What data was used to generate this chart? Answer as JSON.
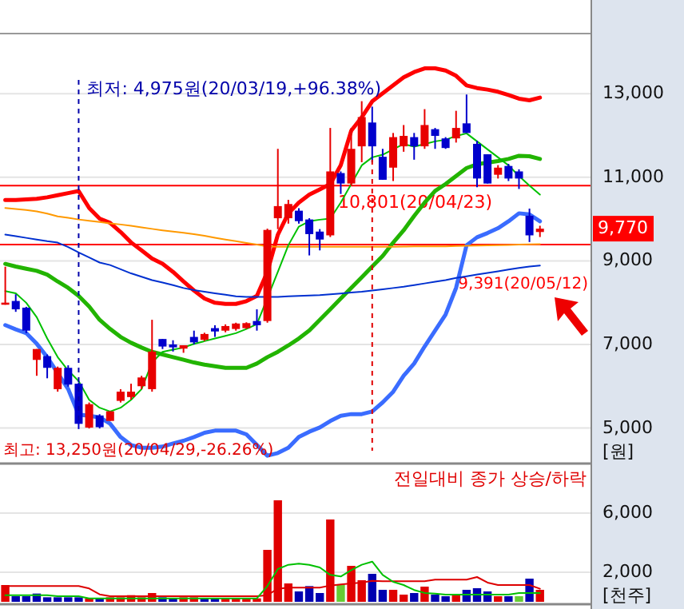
{
  "chart_data": [
    {
      "type": "candlestick",
      "categories": [
        null,
        null,
        null,
        null,
        null,
        null,
        null,
        null,
        null,
        null,
        null,
        null,
        null,
        null,
        null,
        null,
        null,
        null,
        null,
        null,
        null,
        null,
        null,
        null,
        null,
        null,
        null,
        null,
        null,
        null,
        null,
        null,
        null,
        null,
        null,
        null,
        null,
        null,
        null,
        null,
        null,
        null,
        null,
        null,
        null,
        null,
        null,
        null,
        null,
        null,
        null,
        null
      ],
      "ohlc": [
        [
          7950,
          8860,
          7950,
          8000
        ],
        [
          8040,
          8200,
          7780,
          7840
        ],
        [
          7880,
          7900,
          7270,
          7330
        ],
        [
          6630,
          6890,
          6250,
          6890
        ],
        [
          6720,
          6760,
          6190,
          6440
        ],
        [
          5930,
          6470,
          5870,
          6440
        ],
        [
          6440,
          6500,
          5990,
          6040
        ],
        [
          6060,
          6090,
          4975,
          5100
        ],
        [
          5010,
          5610,
          4990,
          5570
        ],
        [
          5300,
          5330,
          4990,
          5020
        ],
        [
          5170,
          5400,
          5170,
          5400
        ],
        [
          5650,
          5930,
          5610,
          5870
        ],
        [
          5740,
          6060,
          5680,
          5870
        ],
        [
          6000,
          6250,
          5930,
          6210
        ],
        [
          5930,
          7590,
          5870,
          6830
        ],
        [
          7130,
          7130,
          6890,
          6950
        ],
        [
          7000,
          7100,
          6830,
          6930
        ],
        [
          6900,
          6980,
          6800,
          6980
        ],
        [
          7180,
          7330,
          7000,
          7050
        ],
        [
          7110,
          7280,
          7080,
          7250
        ],
        [
          7390,
          7460,
          7180,
          7310
        ],
        [
          7330,
          7480,
          7290,
          7440
        ],
        [
          7370,
          7520,
          7330,
          7500
        ],
        [
          7390,
          7530,
          7370,
          7510
        ],
        [
          7560,
          7840,
          7330,
          7460
        ],
        [
          7560,
          9770,
          7520,
          9740
        ],
        [
          10020,
          11680,
          9760,
          10310
        ],
        [
          10020,
          10460,
          9890,
          10360
        ],
        [
          10200,
          10260,
          9890,
          9950
        ],
        [
          9990,
          10020,
          9130,
          9640
        ],
        [
          9700,
          9760,
          9250,
          9510
        ],
        [
          9610,
          12180,
          9570,
          11140
        ],
        [
          11100,
          11140,
          10600,
          10850
        ],
        [
          10850,
          12180,
          10800,
          11680
        ],
        [
          11740,
          12820,
          11360,
          12440
        ],
        [
          12310,
          12690,
          11360,
          11740
        ],
        [
          11490,
          11680,
          10940,
          10940
        ],
        [
          11230,
          12060,
          10910,
          11960
        ],
        [
          11740,
          12250,
          11610,
          11990
        ],
        [
          11960,
          12060,
          11420,
          11740
        ],
        [
          11740,
          12630,
          11680,
          12250
        ],
        [
          12150,
          12180,
          11680,
          11990
        ],
        [
          11930,
          11960,
          11680,
          11700
        ],
        [
          11930,
          12590,
          11830,
          12180
        ],
        [
          12290,
          12980,
          12060,
          12060
        ],
        [
          11800,
          11870,
          10760,
          10970
        ],
        [
          11550,
          11550,
          10850,
          10850
        ],
        [
          11060,
          11290,
          10970,
          11230
        ],
        [
          11270,
          11320,
          10910,
          10970
        ],
        [
          11140,
          11190,
          10720,
          10970
        ],
        [
          10080,
          10250,
          9450,
          9610
        ],
        [
          9690,
          9840,
          9570,
          9770
        ]
      ],
      "colors": [
        "#e80000",
        "#0000cc",
        "#0000cc",
        "#e80000",
        "#0000cc",
        "#e80000",
        "#0000cc",
        "#0000cc",
        "#e80000",
        "#0000cc",
        "#e80000",
        "#e80000",
        "#e80000",
        "#e80000",
        "#e80000",
        "#0000cc",
        "#0000cc",
        "#e80000",
        "#0000cc",
        "#e80000",
        "#0000cc",
        "#e80000",
        "#e80000",
        "#e80000",
        "#0000cc",
        "#e80000",
        "#e80000",
        "#e80000",
        "#0000cc",
        "#0000cc",
        "#0000cc",
        "#e80000",
        "#0000cc",
        "#e80000",
        "#e80000",
        "#0000cc",
        "#0000cc",
        "#e80000",
        "#e80000",
        "#0000cc",
        "#e80000",
        "#0000cc",
        "#0000cc",
        "#e80000",
        "#0000cc",
        "#0000cc",
        "#0000cc",
        "#e80000",
        "#0000cc",
        "#0000cc",
        "#0000cc",
        "#e80000"
      ],
      "series": [
        {
          "type": "line",
          "color": "#ff0000",
          "values": [
            10457,
            10457,
            10470,
            10483,
            10520,
            10570,
            10620,
            10670,
            10266,
            10010,
            9910,
            9690,
            9440,
            9250,
            9055,
            8930,
            8736,
            8508,
            8290,
            8100,
            7997,
            7970,
            7970,
            8035,
            8162,
            8736,
            9628,
            10138,
            10393,
            10584,
            10711,
            10840,
            11287,
            12115,
            12434,
            12816,
            13007,
            13198,
            13390,
            13517,
            13606,
            13606,
            13555,
            13428,
            13198,
            13135,
            13097,
            13046,
            12969,
            12880,
            12842,
            12906
          ]
        },
        {
          "type": "line",
          "color": "#22b400",
          "values": [
            8927,
            8863,
            8812,
            8761,
            8672,
            8506,
            8353,
            8162,
            7907,
            7588,
            7371,
            7180,
            7040,
            6925,
            6823,
            6760,
            6696,
            6632,
            6568,
            6517,
            6479,
            6441,
            6441,
            6441,
            6543,
            6696,
            6823,
            6976,
            7142,
            7333,
            7588,
            7843,
            8098,
            8353,
            8608,
            8863,
            9118,
            9437,
            9730,
            10074,
            10393,
            10673,
            10839,
            11030,
            11221,
            11310,
            11349,
            11387,
            11438,
            11514,
            11502,
            11438
          ]
        },
        {
          "type": "line",
          "color": "#3a6cff",
          "values": [
            7463,
            7361,
            7271,
            7016,
            6696,
            6314,
            5932,
            5320,
            5294,
            5256,
            5103,
            4784,
            4593,
            4529,
            4529,
            4555,
            4631,
            4695,
            4784,
            4886,
            4937,
            4937,
            4937,
            4848,
            4593,
            4338,
            4402,
            4529,
            4784,
            4912,
            5014,
            5167,
            5294,
            5333,
            5333,
            5397,
            5613,
            5868,
            6250,
            6543,
            6951,
            7333,
            7716,
            8353,
            9373,
            9564,
            9666,
            9781,
            9946,
            10138,
            10112,
            9946
          ]
        },
        {
          "type": "line",
          "color": "#ff9900",
          "values": [
            10266,
            10240,
            10215,
            10185,
            10130,
            10063,
            10030,
            9990,
            9960,
            9930,
            9897,
            9870,
            9840,
            9800,
            9765,
            9731,
            9700,
            9670,
            9640,
            9600,
            9553,
            9510,
            9470,
            9430,
            9390,
            9349,
            9336,
            9336,
            9336,
            9336,
            9336,
            9336,
            9336,
            9336,
            9336,
            9336,
            9336,
            9336,
            9340,
            9345,
            9349,
            9349,
            9349,
            9355,
            9360,
            9365,
            9370,
            9375,
            9380,
            9390,
            9395,
            9400
          ]
        },
        {
          "type": "line",
          "color": "#0030d0",
          "values": [
            9627,
            9590,
            9550,
            9510,
            9470,
            9436,
            9330,
            9200,
            9080,
            8960,
            8900,
            8800,
            8700,
            8620,
            8540,
            8480,
            8420,
            8350,
            8300,
            8260,
            8225,
            8190,
            8150,
            8136,
            8136,
            8136,
            8136,
            8150,
            8160,
            8170,
            8180,
            8200,
            8220,
            8240,
            8260,
            8289,
            8320,
            8350,
            8380,
            8420,
            8460,
            8500,
            8540,
            8590,
            8630,
            8671,
            8710,
            8750,
            8790,
            8830,
            8863,
            8888
          ]
        },
        {
          "type": "line",
          "color": "#00c000",
          "values": [
            8276,
            8225,
            7996,
            7652,
            7142,
            6696,
            6377,
            6122,
            5676,
            5485,
            5396,
            5485,
            5676,
            5931,
            6568,
            6823,
            6874,
            6925,
            7014,
            7078,
            7142,
            7205,
            7269,
            7371,
            7486,
            null,
            8736,
            9373,
            9819,
            9947,
            9985,
            10010,
            10393,
            10839,
            11285,
            11476,
            11540,
            11668,
            11795,
            11731,
            11795,
            11859,
            11897,
            11987,
            12050,
            11859,
            11668,
            11476,
            11285,
            11030,
            10801,
            10584
          ]
        }
      ],
      "ylim": [
        4150,
        14400
      ],
      "yticks": [
        {
          "value": 5000,
          "label": "5,000"
        },
        {
          "value": 7000,
          "label": "7,000"
        },
        {
          "value": 9000,
          "label": "9,000"
        },
        {
          "value": 11000,
          "label": "11,000"
        },
        {
          "value": 13000,
          "label": "13,000"
        }
      ],
      "ylabel": "[원]",
      "grid": "y",
      "ref_lines": [
        {
          "axis": "y",
          "value": 10801,
          "label": "10,801(20/04/23)",
          "color": "#ff0000"
        },
        {
          "axis": "y",
          "value": 9391,
          "label": "9,391(20/05/12)",
          "color": "#ff0000"
        }
      ],
      "annotations": [
        "9,770",
        "최저: 4,975원(20/03/19,+96.38%)",
        "최고: 13,250원(20/04/29,-26.26%)"
      ]
    },
    {
      "type": "bar",
      "categories": [
        null,
        null,
        null,
        null,
        null,
        null,
        null,
        null,
        null,
        null,
        null,
        null,
        null,
        null,
        null,
        null,
        null,
        null,
        null,
        null,
        null,
        null,
        null,
        null,
        null,
        null,
        null,
        null,
        null,
        null,
        null,
        null,
        null,
        null,
        null,
        null,
        null,
        null,
        null,
        null,
        null,
        null,
        null,
        null,
        null,
        null,
        null,
        null,
        null,
        null,
        null,
        null
      ],
      "series": [
        {
          "type": "bar",
          "colors": [
            "#e00000",
            "#0000b0",
            "#0000b0",
            "#0000b0",
            "#0000b0",
            "#0000b0",
            "#0000b0",
            "#0000b0",
            "#e00000",
            "#0000b0",
            "#e00000",
            "#e00000",
            "#e00000",
            "#e00000",
            "#e00000",
            "#0000b0",
            "#0000b0",
            "#e00000",
            "#e00000",
            "#0000b0",
            "#0000b0",
            "#e00000",
            "#e00000",
            "#e00000",
            "#e00000",
            "#e00000",
            "#e00000",
            "#e00000",
            "#0000b0",
            "#0000b0",
            "#0000b0",
            "#e00000",
            "#66cc33",
            "#e00000",
            "#e00000",
            "#0000b0",
            "#0000b0",
            "#e00000",
            "#e00000",
            "#0000b0",
            "#e00000",
            "#0000b0",
            "#0000b0",
            "#e00000",
            "#0000b0",
            "#0000b0",
            "#0000b0",
            "#e00000",
            "#0000b0",
            "#66cc33",
            "#0000b0",
            "#e00000"
          ],
          "values": [
            1135,
            378,
            378,
            558,
            306,
            306,
            306,
            306,
            234,
            234,
            306,
            306,
            450,
            306,
            594,
            306,
            270,
            306,
            306,
            234,
            234,
            234,
            234,
            234,
            234,
            3513,
            6864,
            1243,
            702,
            1063,
            594,
            5567,
            1171,
            2432,
            1459,
            1892,
            811,
            811,
            486,
            594,
            1027,
            486,
            378,
            450,
            811,
            919,
            702,
            378,
            378,
            378,
            1567,
            811
          ]
        },
        {
          "type": "line",
          "color": "#dd0000",
          "values": [
            1063,
            1063,
            1063,
            1063,
            1063,
            1063,
            1063,
            1063,
            900,
            500,
            378,
            378,
            378,
            378,
            378,
            378,
            378,
            378,
            378,
            378,
            378,
            378,
            378,
            378,
            378,
            450,
            883,
            955,
            955,
            955,
            955,
            1100,
            1171,
            1243,
            1300,
            1423,
            1387,
            1387,
            1387,
            1387,
            1387,
            1500,
            1500,
            1500,
            1500,
            1675,
            1300,
            1135,
            1135,
            1135,
            1135,
            883
          ]
        },
        {
          "type": "line",
          "color": "#00c000",
          "values": [
            450,
            450,
            450,
            450,
            450,
            378,
            378,
            378,
            234,
            234,
            234,
            234,
            234,
            234,
            234,
            234,
            234,
            234,
            234,
            234,
            234,
            234,
            234,
            234,
            234,
            1063,
            2216,
            2504,
            2576,
            2504,
            2324,
            1820,
            1711,
            2144,
            2504,
            2720,
            1820,
            1350,
            1135,
            800,
            600,
            558,
            486,
            486,
            486,
            486,
            486,
            486,
            486,
            594,
            594,
            594
          ]
        }
      ],
      "ylim": [
        0,
        9350
      ],
      "yticks": [
        {
          "value": 2000,
          "label": "2,000"
        },
        {
          "value": 6000,
          "label": "6,000"
        }
      ],
      "ylabel": "[천주]",
      "grid": "y",
      "annotations": [
        "전일대비 종가 상승/하락"
      ]
    }
  ]
}
